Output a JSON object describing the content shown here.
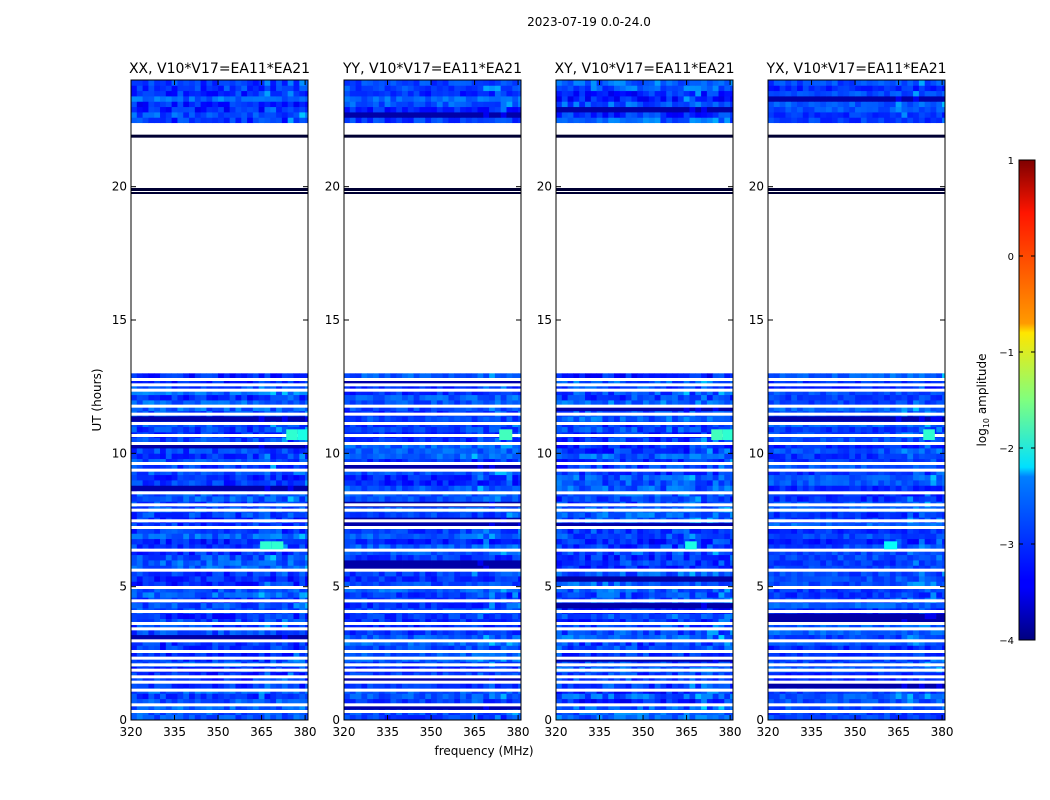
{
  "chart_data": {
    "type": "heatmap",
    "suptitle": "2023-07-19 0.0-24.0",
    "xlabel": "frequency (MHz)",
    "ylabel": "UT (hours)",
    "xlim": [
      320,
      381
    ],
    "ylim": [
      0,
      24
    ],
    "xticks": [
      320,
      335,
      350,
      365,
      380
    ],
    "yticks": [
      0,
      5,
      10,
      15,
      20
    ],
    "panels": [
      {
        "title": "XX, V10*V17=EA11*EA21",
        "intensity": 1.0
      },
      {
        "title": "YY, V10*V17=EA11*EA21",
        "intensity": 0.8
      },
      {
        "title": "XY, V10*V17=EA11*EA21",
        "intensity": 1.15
      },
      {
        "title": "YX, V10*V17=EA11*EA21",
        "intensity": 0.7
      }
    ],
    "data_gaps_hours": [
      [
        13.0,
        21.9
      ],
      [
        22.0,
        22.4
      ],
      [
        19.85,
        19.95
      ]
    ],
    "flagged_rows_hours": [
      0.3,
      0.55,
      1.1,
      1.4,
      1.6,
      1.85,
      2.05,
      2.3,
      2.55,
      2.95,
      3.4,
      3.6,
      4.05,
      4.45,
      4.95,
      5.6,
      6.35,
      7.2,
      7.45,
      7.85,
      8.05,
      8.5,
      9.35,
      9.6,
      10.35,
      10.65,
      11.1,
      11.45,
      11.75,
      12.35,
      12.55,
      12.75
    ],
    "rfi_features": [
      {
        "panel": 0,
        "f0": 364.5,
        "f1": 368.5,
        "t0": 6.4,
        "t1": 6.7,
        "level": -1.9
      },
      {
        "panel": 0,
        "f0": 368.5,
        "f1": 372.5,
        "t0": 6.4,
        "t1": 6.7,
        "level": -1.9
      },
      {
        "panel": 0,
        "f0": 373.5,
        "f1": 377.5,
        "t0": 10.5,
        "t1": 10.9,
        "level": -1.9
      },
      {
        "panel": 0,
        "f0": 377.5,
        "f1": 381.0,
        "t0": 10.5,
        "t1": 10.9,
        "level": -2.0
      },
      {
        "panel": 1,
        "f0": 373.5,
        "f1": 378.0,
        "t0": 10.5,
        "t1": 10.9,
        "level": -1.8
      },
      {
        "panel": 2,
        "f0": 373.5,
        "f1": 377.5,
        "t0": 10.5,
        "t1": 10.9,
        "level": -1.8
      },
      {
        "panel": 2,
        "f0": 377.5,
        "f1": 381.0,
        "t0": 10.5,
        "t1": 10.9,
        "level": -1.9
      },
      {
        "panel": 2,
        "f0": 364.5,
        "f1": 368.5,
        "t0": 6.4,
        "t1": 6.7,
        "level": -2.0
      },
      {
        "panel": 3,
        "f0": 373.5,
        "f1": 377.5,
        "t0": 10.5,
        "t1": 10.9,
        "level": -1.9
      },
      {
        "panel": 3,
        "f0": 360.0,
        "f1": 364.5,
        "t0": 6.4,
        "t1": 6.7,
        "level": -2.1
      }
    ],
    "colorbar": {
      "label": "log$_{10}$ amplitude",
      "ticks": [
        -4,
        -3,
        -2,
        -1,
        0,
        1
      ],
      "range": [
        -4,
        1
      ],
      "colormap": "jet"
    }
  }
}
